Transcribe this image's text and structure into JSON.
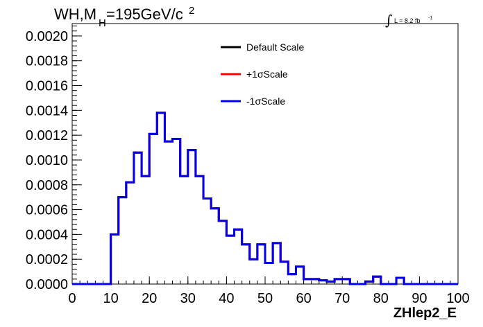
{
  "chart_data": {
    "type": "histogram-step",
    "title_main": "WH,M",
    "title_sub": "H",
    "title_rest": "=195GeV/c",
    "title_sup": "2",
    "lumi": {
      "integral": "∫",
      "text": "L = 8.2 fb",
      "sup": "-1"
    },
    "xlabel": "ZHlep2_E",
    "xlim": [
      0,
      100
    ],
    "ylim": [
      0,
      0.0021
    ],
    "x_ticks": [
      "0",
      "10",
      "20",
      "30",
      "40",
      "50",
      "60",
      "70",
      "80",
      "90",
      "100"
    ],
    "y_ticks": [
      "0.0000",
      "0.0002",
      "0.0004",
      "0.0006",
      "0.0008",
      "0.0010",
      "0.0012",
      "0.0014",
      "0.0016",
      "0.0018",
      "0.0020"
    ],
    "bin_edges": [
      0,
      2,
      4,
      6,
      8,
      10,
      12,
      14,
      16,
      18,
      20,
      22,
      24,
      26,
      28,
      30,
      32,
      34,
      36,
      38,
      40,
      42,
      44,
      46,
      48,
      50,
      52,
      54,
      56,
      58,
      60,
      62,
      64,
      66,
      68,
      70,
      72,
      74,
      76,
      78,
      80,
      82,
      84,
      86,
      88,
      90,
      92,
      94,
      96,
      98,
      100
    ],
    "series": [
      {
        "name": "Default Scale",
        "color": "#000000",
        "values": [
          0,
          0,
          0,
          0,
          0,
          0.0004,
          0.0007,
          0.00082,
          0.00106,
          0.00087,
          0.00121,
          0.00138,
          0.00115,
          0.00117,
          0.00087,
          0.00108,
          0.00087,
          0.00069,
          0.00061,
          0.00051,
          0.00039,
          0.00044,
          0.00032,
          0.0002,
          0.00032,
          0.00017,
          0.00033,
          0.00018,
          8e-05,
          0.00014,
          4e-05,
          4e-05,
          3e-05,
          2e-05,
          4e-05,
          4e-05,
          0,
          0,
          2e-05,
          6e-05,
          0,
          0,
          5e-05,
          0,
          0,
          0,
          0,
          0,
          0,
          0
        ]
      },
      {
        "name": "+1σScale",
        "color": "#ff0000",
        "values": [
          0,
          0,
          0,
          0,
          0,
          0.0004,
          0.0007,
          0.00082,
          0.00106,
          0.00087,
          0.00121,
          0.00138,
          0.00115,
          0.00117,
          0.00087,
          0.00108,
          0.00087,
          0.00069,
          0.00061,
          0.00051,
          0.00039,
          0.00044,
          0.00032,
          0.0002,
          0.00032,
          0.00017,
          0.00033,
          0.00018,
          8e-05,
          0.00014,
          4e-05,
          4e-05,
          3e-05,
          2e-05,
          4e-05,
          4e-05,
          0,
          0,
          2e-05,
          6e-05,
          0,
          0,
          5e-05,
          0,
          0,
          0,
          0,
          0,
          0,
          0
        ]
      },
      {
        "name": "-1σScale",
        "color": "#0000ee",
        "values": [
          0,
          0,
          0,
          0,
          0,
          0.0004,
          0.0007,
          0.00082,
          0.00106,
          0.00087,
          0.00121,
          0.00138,
          0.00115,
          0.00117,
          0.00087,
          0.00108,
          0.00087,
          0.00069,
          0.00061,
          0.00051,
          0.00039,
          0.00044,
          0.00032,
          0.0002,
          0.00032,
          0.00017,
          0.00033,
          0.00018,
          8e-05,
          0.00014,
          4e-05,
          4e-05,
          3e-05,
          2e-05,
          4e-05,
          4e-05,
          0,
          0,
          2e-05,
          6e-05,
          0,
          0,
          5e-05,
          0,
          0,
          0,
          0,
          0,
          0,
          0
        ]
      }
    ],
    "legend_position": "top-center",
    "grid": false
  }
}
